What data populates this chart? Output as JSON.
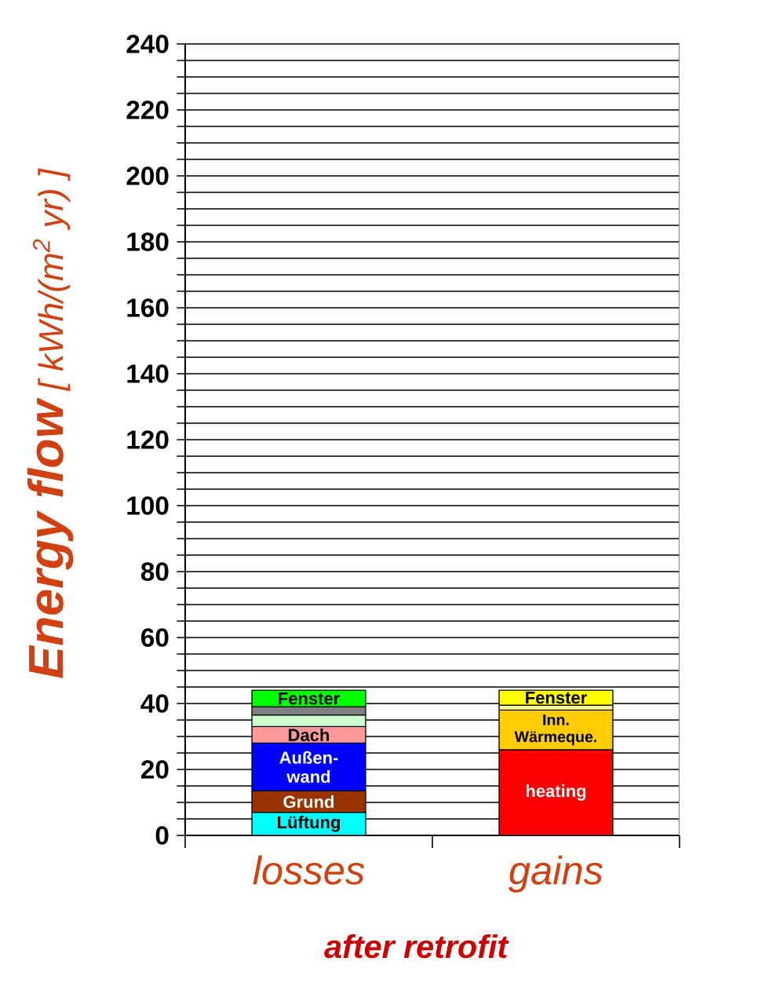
{
  "chart_data": {
    "type": "bar",
    "stacked": true,
    "ylabel": "**Energy flow** [ kWh/(m$^{2}$ yr) ]",
    "xlabel": "after retrofit",
    "categories": [
      "losses",
      "gains"
    ],
    "ylim": [
      0,
      240
    ],
    "yticks": [
      0,
      {
        "value": 5,
        "label": null
      },
      {
        "value": 10,
        "label": null
      },
      {
        "value": 15,
        "label": null
      },
      20,
      {
        "value": 25,
        "label": null
      },
      {
        "value": 30,
        "label": null
      },
      {
        "value": 35,
        "label": null
      },
      40,
      {
        "value": 45,
        "label": null
      },
      {
        "value": 50,
        "label": null
      },
      {
        "value": 55,
        "label": null
      },
      60,
      {
        "value": 65,
        "label": null
      },
      {
        "value": 70,
        "label": null
      },
      {
        "value": 75,
        "label": null
      },
      80,
      {
        "value": 85,
        "label": null
      },
      {
        "value": 90,
        "label": null
      },
      {
        "value": 95,
        "label": null
      },
      100,
      {
        "value": 105,
        "label": null
      },
      {
        "value": 110,
        "label": null
      },
      {
        "value": 115,
        "label": null
      },
      120,
      {
        "value": 125,
        "label": null
      },
      {
        "value": 130,
        "label": null
      },
      {
        "value": 135,
        "label": null
      },
      140,
      {
        "value": 145,
        "label": null
      },
      {
        "value": 150,
        "label": null
      },
      {
        "value": 155,
        "label": null
      },
      160,
      {
        "value": 165,
        "label": null
      },
      {
        "value": 170,
        "label": null
      },
      {
        "value": 175,
        "label": null
      },
      180,
      {
        "value": 185,
        "label": null
      },
      {
        "value": 190,
        "label": null
      },
      {
        "value": 195,
        "label": null
      },
      200,
      {
        "value": 205,
        "label": null
      },
      {
        "value": 210,
        "label": null
      },
      {
        "value": 215,
        "label": null
      },
      220,
      {
        "value": 225,
        "label": null
      },
      {
        "value": 230,
        "label": null
      },
      {
        "value": 235,
        "label": null
      },
      240
    ],
    "grid": "y",
    "series": [
      {
        "name": "Lüftung",
        "color": "#00ffff",
        "values": [
          7,
          null
        ]
      },
      {
        "name": "Grund",
        "color": "#993300",
        "values": [
          6.5,
          null
        ]
      },
      {
        "name": "Außen-wand",
        "color": "#0000ff",
        "values": [
          14.5,
          null
        ]
      },
      {
        "name": "Dach",
        "color": "#ff9999",
        "values": [
          5,
          null
        ]
      },
      {
        "color": "#ccffcc",
        "values": [
          3.5,
          null
        ]
      },
      {
        "color": "#808080",
        "values": [
          2.5,
          null
        ]
      },
      {
        "name": "Fenster",
        "color": "#00ff00",
        "values": [
          5,
          null
        ]
      },
      {
        "name": "heating",
        "color": "#ff0000",
        "values": [
          null,
          26
        ]
      },
      {
        "name": "Inn. Wärmeque.",
        "color": "#ffcc00",
        "values": [
          null,
          12
        ]
      },
      {
        "color": "#ffff99",
        "values": [
          null,
          1.5
        ]
      },
      {
        "name": "Fenster",
        "color": "#ffff00",
        "values": [
          null,
          4.5
        ]
      }
    ]
  }
}
